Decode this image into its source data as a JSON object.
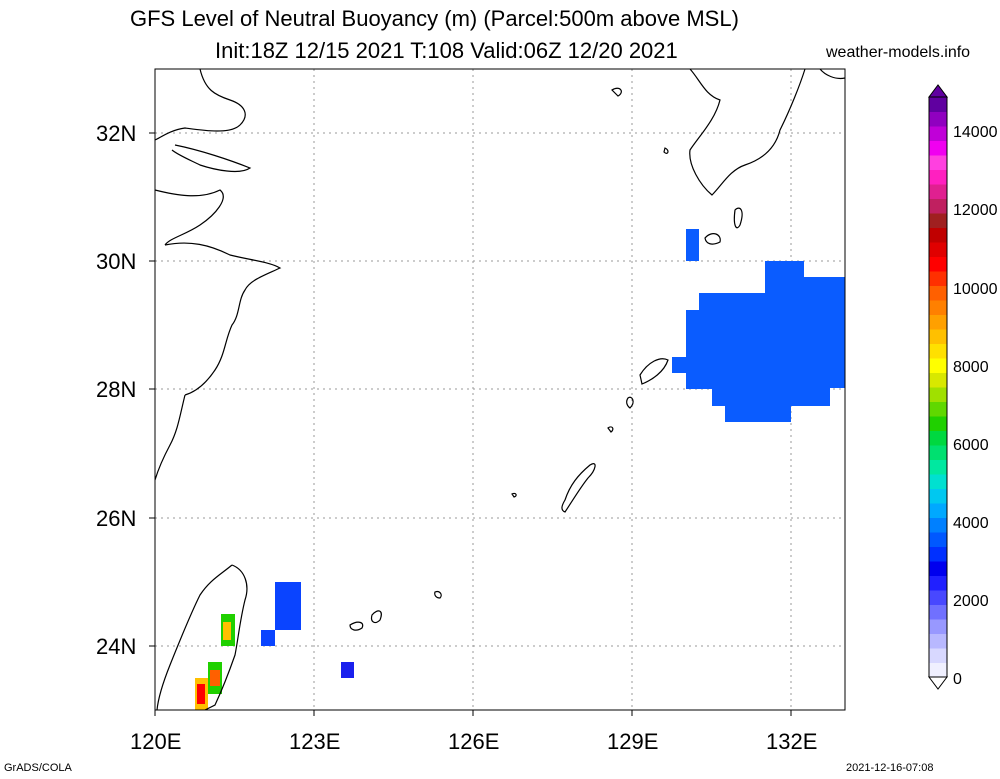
{
  "header": {
    "title_line1": "GFS Level of Neutral Buoyancy (m) (Parcel:500m above MSL)",
    "title_line2": "Init:18Z 12/15 2021 T:108 Valid:06Z 12/20 2021",
    "site": "weather-models.info"
  },
  "footer": {
    "left": "GrADS/COLA",
    "right": "2021-12-16-07:08"
  },
  "map": {
    "lon_labels": [
      "120E",
      "123E",
      "126E",
      "129E",
      "132E"
    ],
    "lat_labels": [
      "32N",
      "30N",
      "28N",
      "26N",
      "24N"
    ],
    "lon_range": [
      120,
      133
    ],
    "lat_range": [
      23,
      33
    ],
    "gridlines": true
  },
  "colorbar": {
    "labels": [
      "14000",
      "12000",
      "10000",
      "8000",
      "6000",
      "4000",
      "2000",
      "0"
    ],
    "colors": [
      "#f0f0ff",
      "#d8d8ff",
      "#b8b8ff",
      "#9898ff",
      "#7070ff",
      "#4848ff",
      "#2020ff",
      "#0000ee",
      "#0030ff",
      "#0058ff",
      "#0080ff",
      "#00a8ff",
      "#00c8f0",
      "#00e0d0",
      "#00e8a0",
      "#00e070",
      "#00d840",
      "#20d000",
      "#60d800",
      "#a0e000",
      "#d8e800",
      "#ffff00",
      "#ffe000",
      "#ffc000",
      "#ffa000",
      "#ff8000",
      "#ff6000",
      "#ff3000",
      "#ff0000",
      "#e00000",
      "#c00000",
      "#a02020",
      "#c02060",
      "#e02090",
      "#ff20c0",
      "#ff40e0",
      "#f000f0",
      "#c000d8",
      "#9000c0",
      "#6000a0"
    ]
  },
  "blue_value_color": "#0a5cff"
}
